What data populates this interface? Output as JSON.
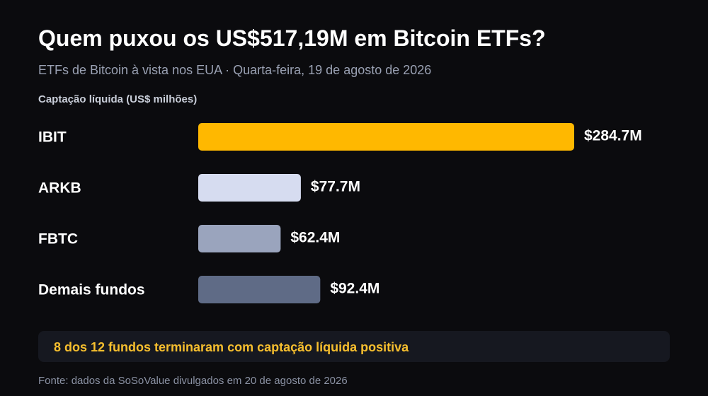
{
  "header": {
    "title": "Quem puxou os US$517,19M em Bitcoin ETFs?",
    "subtitle": "ETFs de Bitcoin à vista nos EUA · Quarta-feira, 19 de agosto de 2026"
  },
  "chart_data": {
    "type": "bar",
    "orientation": "horizontal",
    "axis_caption": "Captação líquida (US$ milhões)",
    "categories": [
      "IBIT",
      "ARKB",
      "FBTC",
      "Demais fundos"
    ],
    "values": [
      284.7,
      77.7,
      62.4,
      92.4
    ],
    "value_labels": [
      "$284.7M",
      "$77.7M",
      "$62.4M",
      "$92.4M"
    ],
    "bar_colors": [
      "#ffb800",
      "#d6dcf0",
      "#9aa4bd",
      "#5f6b86"
    ],
    "xlim": [
      0,
      284.7
    ],
    "grid": false,
    "legend": "none"
  },
  "note": {
    "text": "8 dos 12 fundos terminaram com captação líquida positiva"
  },
  "footer": {
    "source": "Fonte: dados da SoSoValue divulgados em 20 de agosto de 2026"
  },
  "colors": {
    "background": "#0b0b0e",
    "accent": "#ffb800",
    "note_text": "#f7bf2e"
  }
}
